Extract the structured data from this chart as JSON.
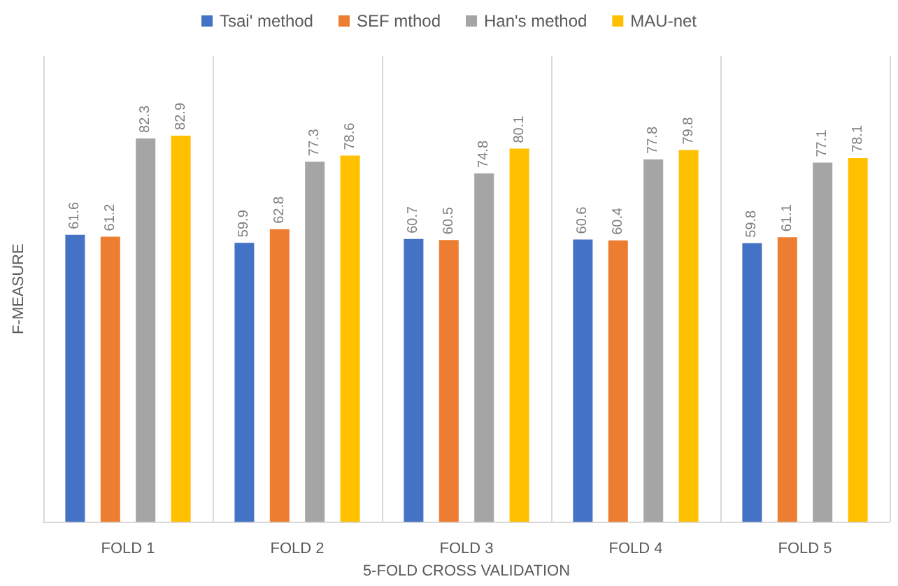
{
  "chart_data": {
    "type": "bar",
    "xlabel": "5-FOLD CROSS VALIDATION",
    "ylabel": "F-MEASURE",
    "categories": [
      "FOLD 1",
      "FOLD 2",
      "FOLD 3",
      "FOLD 4",
      "FOLD 5"
    ],
    "series": [
      {
        "name": "Tsai' method",
        "color": "#4472c4",
        "values": [
          61.6,
          59.9,
          60.7,
          60.6,
          59.8
        ]
      },
      {
        "name": "SEF mthod",
        "color": "#ed7d31",
        "values": [
          61.2,
          62.8,
          60.5,
          60.4,
          61.1
        ]
      },
      {
        "name": "Han's method",
        "color": "#a5a5a5",
        "values": [
          82.3,
          77.3,
          74.8,
          77.8,
          77.1
        ]
      },
      {
        "name": "MAU-net",
        "color": "#ffc000",
        "values": [
          82.9,
          78.6,
          80.1,
          79.8,
          78.1
        ]
      }
    ],
    "data_labels": true,
    "grid": "x",
    "legend": "top",
    "tick_labels": "x"
  }
}
